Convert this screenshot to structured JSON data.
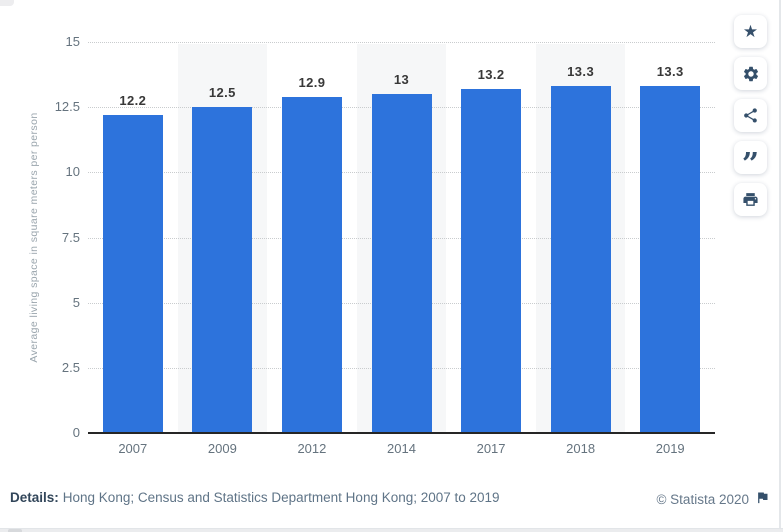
{
  "chart_data": {
    "type": "bar",
    "title": "",
    "categories": [
      "2007",
      "2009",
      "2012",
      "2014",
      "2017",
      "2018",
      "2019"
    ],
    "values": [
      12.2,
      12.5,
      12.9,
      13,
      13.2,
      13.3,
      13.3
    ],
    "value_labels": [
      "12.2",
      "12.5",
      "12.9",
      "13",
      "13.2",
      "13.3",
      "13.3"
    ],
    "xlabel": "",
    "ylabel": "Average living space in square meters per person",
    "ylim": [
      0,
      15
    ],
    "yticks": [
      0,
      2.5,
      5,
      7.5,
      10,
      12.5,
      15
    ],
    "ytick_labels": [
      "0",
      "2.5",
      "5",
      "7.5",
      "10",
      "12.5",
      "15"
    ],
    "grid": "horizontal-dotted",
    "legend": "none",
    "bar_color": "#2d73dc",
    "striped_band_indices": [
      1,
      3,
      5
    ],
    "stripe_color": "#f6f7f8"
  },
  "footer": {
    "details_label": "Details:",
    "details_text": "Hong Kong; Census and Statistics Department Hong Kong; 2007 to 2019",
    "copyright": "© Statista 2020"
  },
  "toolbar": {
    "buttons": [
      {
        "id": "favorite",
        "icon": "star-icon",
        "glyph": "★"
      },
      {
        "id": "settings",
        "icon": "gear-icon"
      },
      {
        "id": "share",
        "icon": "share-icon"
      },
      {
        "id": "cite",
        "icon": "quote-icon",
        "glyph": "”"
      },
      {
        "id": "print",
        "icon": "printer-icon"
      }
    ]
  },
  "colors": {
    "bar": "#2d73dc",
    "icon_navy": "#35506b",
    "grid": "#c9ccce",
    "axis": "#262626",
    "tick_text": "#65737e",
    "value_text": "#383838",
    "details_label": "#32465a",
    "details_text": "#5f7487",
    "stripe": "#f6f7f8"
  }
}
